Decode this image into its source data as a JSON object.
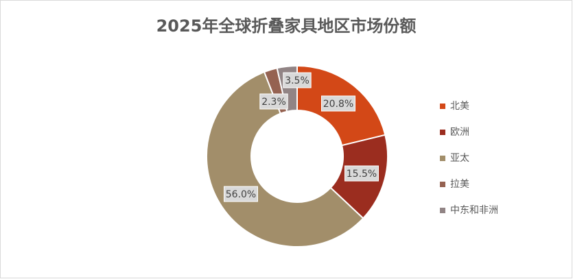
{
  "chart_data": {
    "type": "donut",
    "title": "2025年全球折叠家具地区市场份额",
    "categories": [
      "北美",
      "欧洲",
      "亚太",
      "拉美",
      "中东和非洲"
    ],
    "values": [
      20.8,
      15.5,
      56.0,
      2.3,
      3.5
    ],
    "value_labels": [
      "20.8%",
      "15.5%",
      "56.0%",
      "2.3%",
      "3.5%"
    ],
    "colors": [
      "#d34817",
      "#9b2d1f",
      "#a28e6a",
      "#956251",
      "#918485"
    ],
    "legend": "right"
  }
}
